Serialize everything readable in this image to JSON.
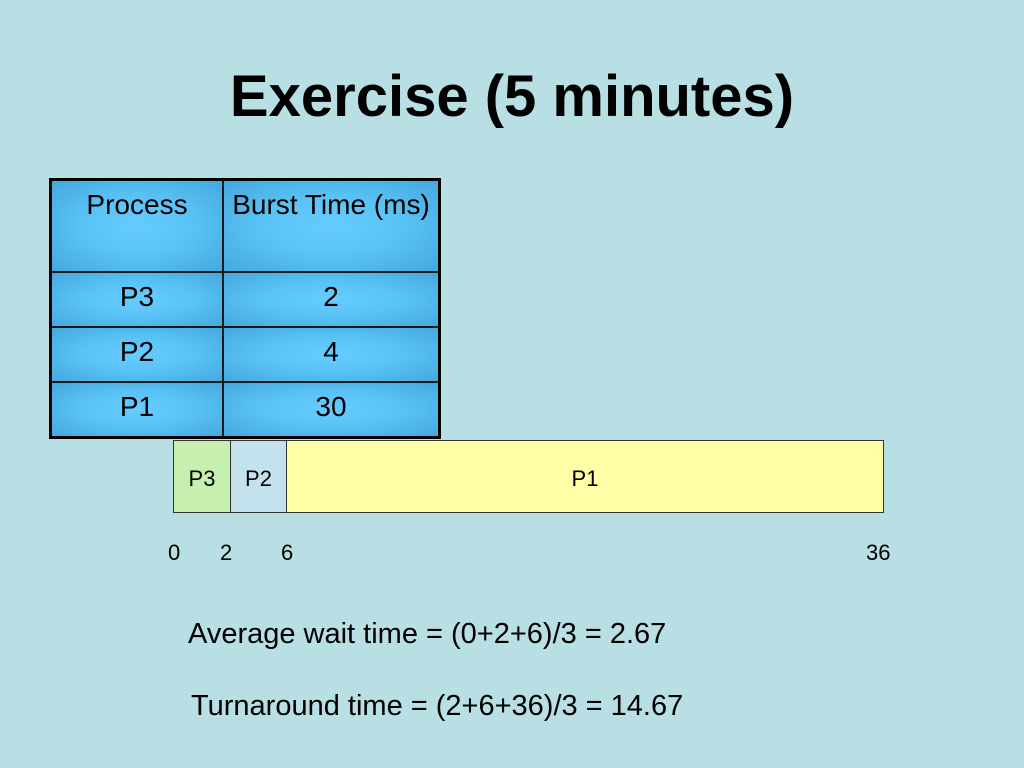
{
  "slide": {
    "title": "Exercise (5 minutes)"
  },
  "burst_table": {
    "headers": [
      "Process",
      "Burst Time (ms)"
    ],
    "rows": [
      [
        "P3",
        "2"
      ],
      [
        "P2",
        "4"
      ],
      [
        "P1",
        "30"
      ]
    ]
  },
  "gantt": {
    "blocks": [
      "P3",
      "P2",
      "P1"
    ],
    "ticks": [
      "0",
      "2",
      "6",
      "36"
    ]
  },
  "formulas": {
    "average_wait": "Average wait time = (0+2+6)/3 = 2.67",
    "turnaround": "Turnaround time = (2+6+36)/3 = 14.67"
  },
  "colors": {
    "background": "#b8dfe3",
    "table_cell": "#5ac3f5",
    "gantt_p3": "#c6efb0",
    "gantt_p2": "#c3e2ee",
    "gantt_p1": "#ffffa8"
  }
}
